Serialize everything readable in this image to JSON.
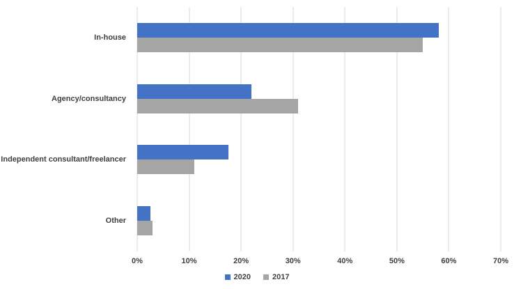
{
  "chart_data": {
    "type": "bar",
    "orientation": "horizontal",
    "title": "",
    "xlabel": "",
    "ylabel": "",
    "categories": [
      "In-house",
      "Agency/consultancy",
      "Independent consultant/freelancer",
      "Other"
    ],
    "series": [
      {
        "name": "2020",
        "color": "#4472C4",
        "values": [
          58,
          22,
          17.5,
          2.6
        ]
      },
      {
        "name": "2017",
        "color": "#A5A5A5",
        "values": [
          55,
          31,
          11,
          3
        ]
      }
    ],
    "xlim": [
      0,
      70
    ],
    "tick_step": 10,
    "tick_labels": [
      "0%",
      "10%",
      "20%",
      "30%",
      "40%",
      "50%",
      "60%",
      "70%"
    ],
    "grid": true,
    "gridline_color": "#D9D9D9",
    "text_color": "#404040",
    "legend_position": "bottom-center",
    "legend": [
      {
        "label": "2020",
        "color": "#4472C4"
      },
      {
        "label": "2017",
        "color": "#A5A5A5"
      }
    ]
  }
}
